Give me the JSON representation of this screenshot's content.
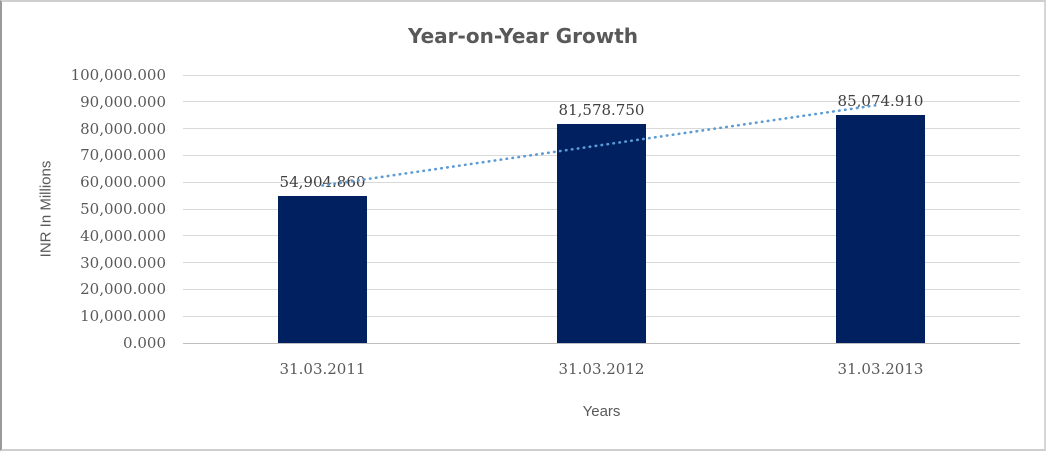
{
  "chart_data": {
    "type": "bar",
    "title": "Year-on-Year Growth",
    "categories": [
      "31.03.2011",
      "31.03.2012",
      "31.03.2013"
    ],
    "values": [
      54904.86,
      81578.75,
      85074.91
    ],
    "data_labels": [
      "54,904.860",
      "81,578.750",
      "85,074.910"
    ],
    "xlabel": "Years",
    "ylabel": "INR In Millions",
    "ylim": [
      0,
      100000
    ],
    "y_tick_step": 10000,
    "y_tick_labels": [
      "0.000",
      "10,000.000",
      "20,000.000",
      "30,000.000",
      "40,000.000",
      "50,000.000",
      "60,000.000",
      "70,000.000",
      "80,000.000",
      "90,000.000",
      "100,000.000"
    ],
    "grid": true,
    "legend": "none",
    "trendline": {
      "type": "linear",
      "style": "dotted"
    },
    "colors": {
      "bar": "#002060",
      "trendline": "#5B9BD5",
      "gridline": "#d9d9d9",
      "axis_line": "#bfbfbf",
      "title_text": "#595959",
      "tick_text": "#595959",
      "data_label_text": "#404040"
    }
  }
}
